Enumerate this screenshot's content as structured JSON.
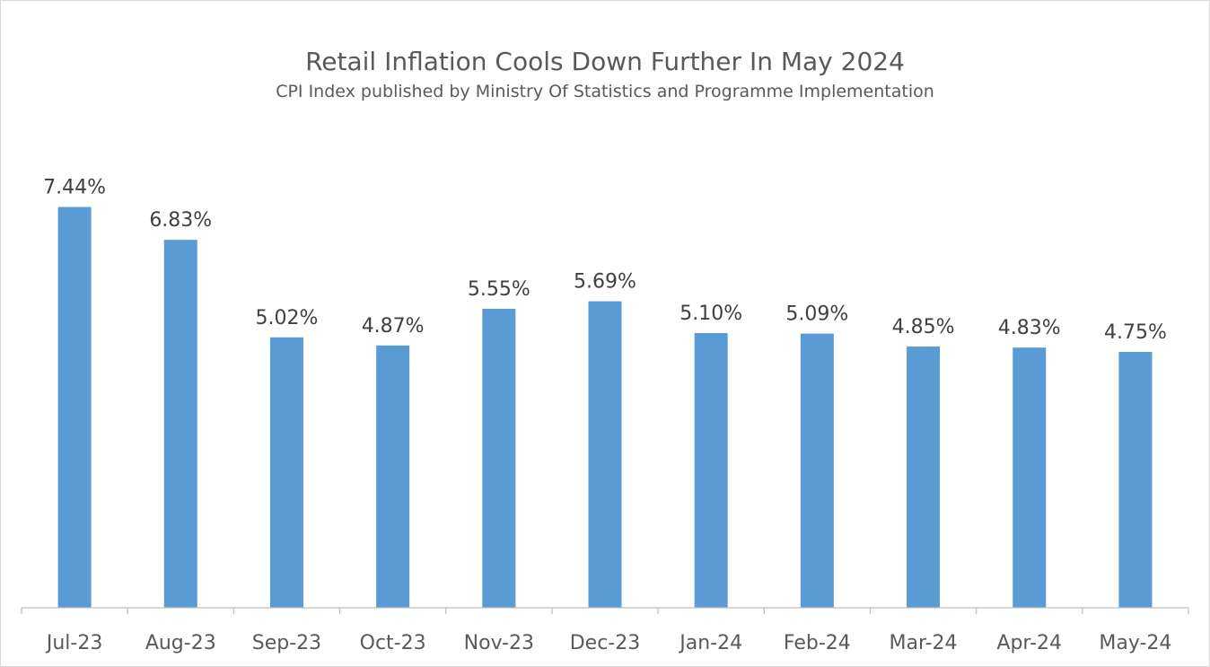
{
  "chart_data": {
    "type": "bar",
    "title": "Retail Inflation Cools Down Further In May 2024",
    "subtitle": "CPI Index published by Ministry Of Statistics and Programme Implementation",
    "xlabel": "",
    "ylabel": "",
    "categories": [
      "Jul-23",
      "Aug-23",
      "Sep-23",
      "Oct-23",
      "Nov-23",
      "Dec-23",
      "Jan-24",
      "Feb-24",
      "Mar-24",
      "Apr-24",
      "May-24"
    ],
    "values": [
      7.44,
      6.83,
      5.02,
      4.87,
      5.55,
      5.69,
      5.1,
      5.09,
      4.85,
      4.83,
      4.75
    ],
    "value_labels": [
      "7.44%",
      "6.83%",
      "5.02%",
      "4.87%",
      "5.55%",
      "5.69%",
      "5.10%",
      "5.09%",
      "4.85%",
      "4.83%",
      "4.75%"
    ],
    "ylim": [
      0,
      8
    ],
    "grid": false,
    "legend": "none",
    "bar_color": "#5b9bd5"
  }
}
